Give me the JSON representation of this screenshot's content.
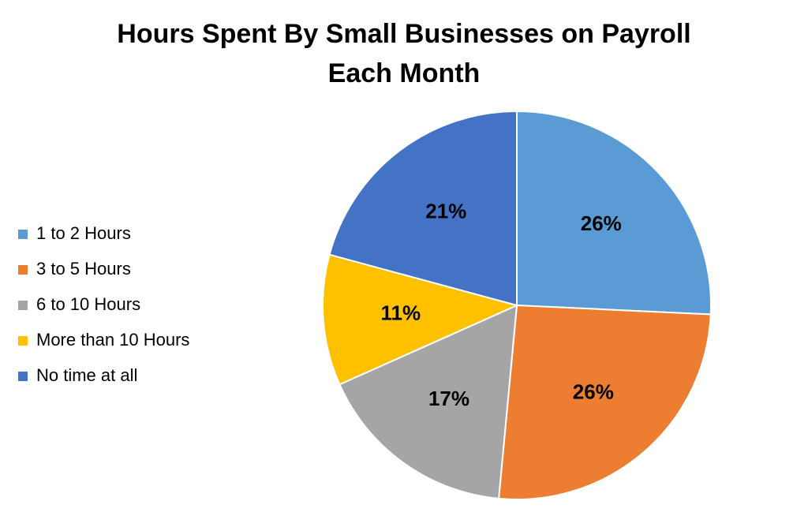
{
  "chart_data": {
    "type": "pie",
    "title": [
      "Hours Spent By Small Businesses on Payroll",
      "Each Month"
    ],
    "categories": [
      "1 to 2 Hours",
      "3 to 5 Hours",
      "6 to 10 Hours",
      "More than 10 Hours",
      "No time at all"
    ],
    "values": [
      26,
      26,
      17,
      11,
      21
    ],
    "value_labels": [
      "26%",
      "26%",
      "17%",
      "11%",
      "21%"
    ],
    "colors": [
      "#5b9bd5",
      "#ed7d31",
      "#a5a5a5",
      "#ffc000",
      "#4472c4"
    ],
    "legend": "left"
  }
}
